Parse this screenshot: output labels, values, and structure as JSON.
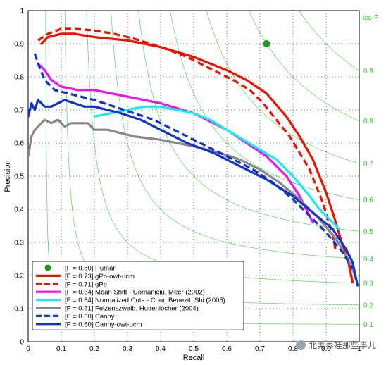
{
  "chart_data": {
    "type": "line",
    "title": "",
    "xlabel": "Recall",
    "ylabel": "Precision",
    "xlim": [
      0,
      1
    ],
    "ylim": [
      0,
      1
    ],
    "grid": "dotted",
    "x_ticks": [
      "0",
      "0.1",
      "0.2",
      "0.3",
      "0.4",
      "0.5",
      "0.6",
      "0.7",
      "0.8",
      "0.9",
      "1"
    ],
    "y_ticks": [
      "0",
      "0.1",
      "0.2",
      "0.3",
      "0.4",
      "0.5",
      "0.6",
      "0.7",
      "0.8",
      "0.9",
      "1"
    ],
    "iso_f": {
      "title": "iso-F",
      "color": "#66dd66",
      "values": [
        0.1,
        0.2,
        0.3,
        0.4,
        0.5,
        0.6,
        0.7,
        0.8,
        0.9
      ],
      "labels": [
        "0.1",
        "0.2",
        "0.3",
        "0.4",
        "0.5",
        "0.6",
        "0.7",
        "0.8",
        "0.9"
      ]
    },
    "legend_position": "bottom-left",
    "points": [
      {
        "name": "[F = 0.80] Human",
        "color": "#1a9a1a",
        "x": 0.72,
        "y": 0.9
      }
    ],
    "series": [
      {
        "name": "[F = 0.73] gPb-owt-ucm",
        "color": "#ee1100",
        "style": "solid",
        "x": [
          0.04,
          0.06,
          0.1,
          0.14,
          0.2,
          0.3,
          0.4,
          0.5,
          0.6,
          0.66,
          0.72,
          0.78,
          0.82,
          0.86,
          0.88,
          0.9,
          0.92,
          0.935,
          0.95,
          0.965,
          0.98
        ],
        "y": [
          0.9,
          0.92,
          0.93,
          0.93,
          0.92,
          0.91,
          0.89,
          0.86,
          0.82,
          0.79,
          0.75,
          0.68,
          0.62,
          0.55,
          0.5,
          0.45,
          0.39,
          0.34,
          0.29,
          0.25,
          0.18
        ]
      },
      {
        "name": "[F = 0.71] gPb",
        "color": "#ee1100",
        "style": "dashed",
        "x": [
          0.03,
          0.06,
          0.1,
          0.14,
          0.2,
          0.26,
          0.32,
          0.4,
          0.48,
          0.56,
          0.62,
          0.67,
          0.71,
          0.75,
          0.79,
          0.82,
          0.85,
          0.87,
          0.89,
          0.905,
          0.92,
          0.93
        ],
        "y": [
          0.91,
          0.93,
          0.945,
          0.945,
          0.94,
          0.93,
          0.915,
          0.89,
          0.86,
          0.82,
          0.79,
          0.76,
          0.72,
          0.67,
          0.62,
          0.57,
          0.52,
          0.47,
          0.42,
          0.37,
          0.32,
          0.27
        ]
      },
      {
        "name": "[F = 0.64] Mean Shift - Comaniciu, Meer (2002)",
        "color": "#ee11ee",
        "style": "solid",
        "x": [
          0.03,
          0.05,
          0.07,
          0.1,
          0.15,
          0.2,
          0.3,
          0.4,
          0.5,
          0.6,
          0.66,
          0.72,
          0.78,
          0.82,
          0.84,
          0.86
        ],
        "y": [
          0.84,
          0.82,
          0.79,
          0.77,
          0.76,
          0.76,
          0.74,
          0.72,
          0.69,
          0.64,
          0.6,
          0.56,
          0.5,
          0.44,
          0.4,
          0.36
        ]
      },
      {
        "name": "[F = 0.64] Normalized Cuts - Cour, Benezit, Shi (2005)",
        "color": "#11eeee",
        "style": "solid",
        "x": [
          0.2,
          0.25,
          0.3,
          0.35,
          0.4,
          0.45,
          0.5,
          0.55,
          0.6,
          0.65,
          0.7,
          0.75,
          0.8,
          0.85,
          0.88,
          0.91,
          0.94
        ],
        "y": [
          0.68,
          0.69,
          0.7,
          0.71,
          0.71,
          0.7,
          0.69,
          0.67,
          0.64,
          0.61,
          0.58,
          0.55,
          0.5,
          0.44,
          0.4,
          0.37,
          0.34
        ]
      },
      {
        "name": "[F = 0.61] Felzenszwalb, Huttenlocher (2004)",
        "color": "#888888",
        "style": "solid",
        "x": [
          0.0,
          0.01,
          0.02,
          0.03,
          0.05,
          0.07,
          0.09,
          0.11,
          0.13,
          0.15,
          0.18,
          0.2,
          0.24,
          0.28,
          0.32,
          0.4,
          0.5,
          0.58,
          0.64,
          0.7,
          0.76,
          0.82,
          0.88,
          0.93,
          0.96,
          0.98,
          0.99
        ],
        "y": [
          0.56,
          0.62,
          0.64,
          0.65,
          0.67,
          0.66,
          0.67,
          0.65,
          0.66,
          0.66,
          0.66,
          0.64,
          0.64,
          0.63,
          0.62,
          0.61,
          0.59,
          0.57,
          0.55,
          0.52,
          0.48,
          0.43,
          0.37,
          0.31,
          0.26,
          0.22,
          0.19
        ]
      },
      {
        "name": "[F = 0.60] Canny",
        "color": "#1133cc",
        "style": "dashed",
        "x": [
          0.02,
          0.03,
          0.05,
          0.08,
          0.12,
          0.16,
          0.2,
          0.26,
          0.32,
          0.38,
          0.44,
          0.5,
          0.56,
          0.62,
          0.68,
          0.74,
          0.8,
          0.85,
          0.9,
          0.95,
          0.98
        ],
        "y": [
          0.87,
          0.84,
          0.79,
          0.76,
          0.75,
          0.74,
          0.73,
          0.71,
          0.69,
          0.67,
          0.64,
          0.61,
          0.58,
          0.55,
          0.52,
          0.48,
          0.43,
          0.38,
          0.33,
          0.27,
          0.22
        ]
      },
      {
        "name": "[F = 0.60] Canny-owt-ucm",
        "color": "#1133cc",
        "style": "solid",
        "x": [
          0.0,
          0.01,
          0.02,
          0.03,
          0.05,
          0.07,
          0.09,
          0.11,
          0.14,
          0.17,
          0.2,
          0.24,
          0.28,
          0.34,
          0.4,
          0.48,
          0.56,
          0.64,
          0.72,
          0.8,
          0.86,
          0.92,
          0.96,
          0.98,
          0.995
        ],
        "y": [
          0.68,
          0.72,
          0.7,
          0.73,
          0.71,
          0.71,
          0.72,
          0.73,
          0.72,
          0.71,
          0.71,
          0.7,
          0.69,
          0.67,
          0.64,
          0.6,
          0.57,
          0.53,
          0.49,
          0.44,
          0.39,
          0.34,
          0.28,
          0.24,
          0.17
        ]
      }
    ]
  },
  "watermark": "北美养娃那些事儿"
}
